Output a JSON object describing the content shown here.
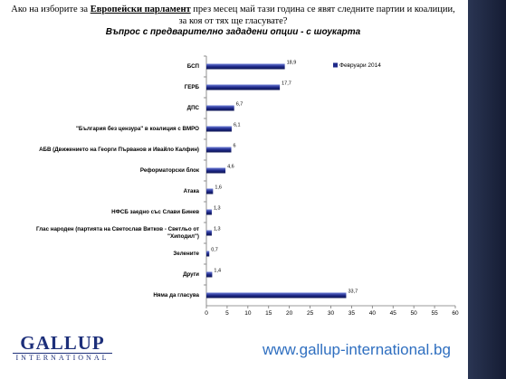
{
  "slide": {
    "question": [
      "Ако на изборите за ",
      "Европейски парламент",
      " през месец май тази година се явят следните партии и коалиции, за коя от тях ще гласувате?"
    ],
    "logo": "GALLUP",
    "logo_sub": "INTERNATIONAL",
    "url": "www.gallup-international.bg"
  },
  "chart_data": {
    "type": "bar",
    "orientation": "horizontal",
    "title": "Въпрос с предварително зададени опции - с шоукарта",
    "categories": [
      "БСП",
      "ГЕРБ",
      "ДПС",
      "\"България без цензура\" в коалиция с ВМРО",
      "АБВ (Движението на Георги Първанов и Ивайло Калфин)",
      "Реформаторски блок",
      "Атака",
      "НФСБ заедно със Слави Бинев",
      "Глас народен (партията на Светослав Витков - Светльо от \"Хиподил\")",
      "Зелените",
      "Други",
      "Няма да гласува"
    ],
    "series": [
      {
        "name": "Февруари 2014",
        "color": "#1f2a8a",
        "values": [
          18.9,
          17.7,
          6.7,
          6.1,
          6,
          4.6,
          1.6,
          1.3,
          1.3,
          0.7,
          1.4,
          33.7
        ],
        "value_labels": [
          "18,9",
          "17,7",
          "6,7",
          "6,1",
          "6",
          "4,6",
          "1,6",
          "1,3",
          "1,3",
          "0,7",
          "1,4",
          "33,7"
        ]
      }
    ],
    "xlim": [
      0,
      60
    ],
    "xticks": [
      0,
      5,
      10,
      15,
      20,
      25,
      30,
      35,
      40,
      45,
      50,
      55,
      60
    ],
    "grid": false,
    "legend": "top-right"
  }
}
